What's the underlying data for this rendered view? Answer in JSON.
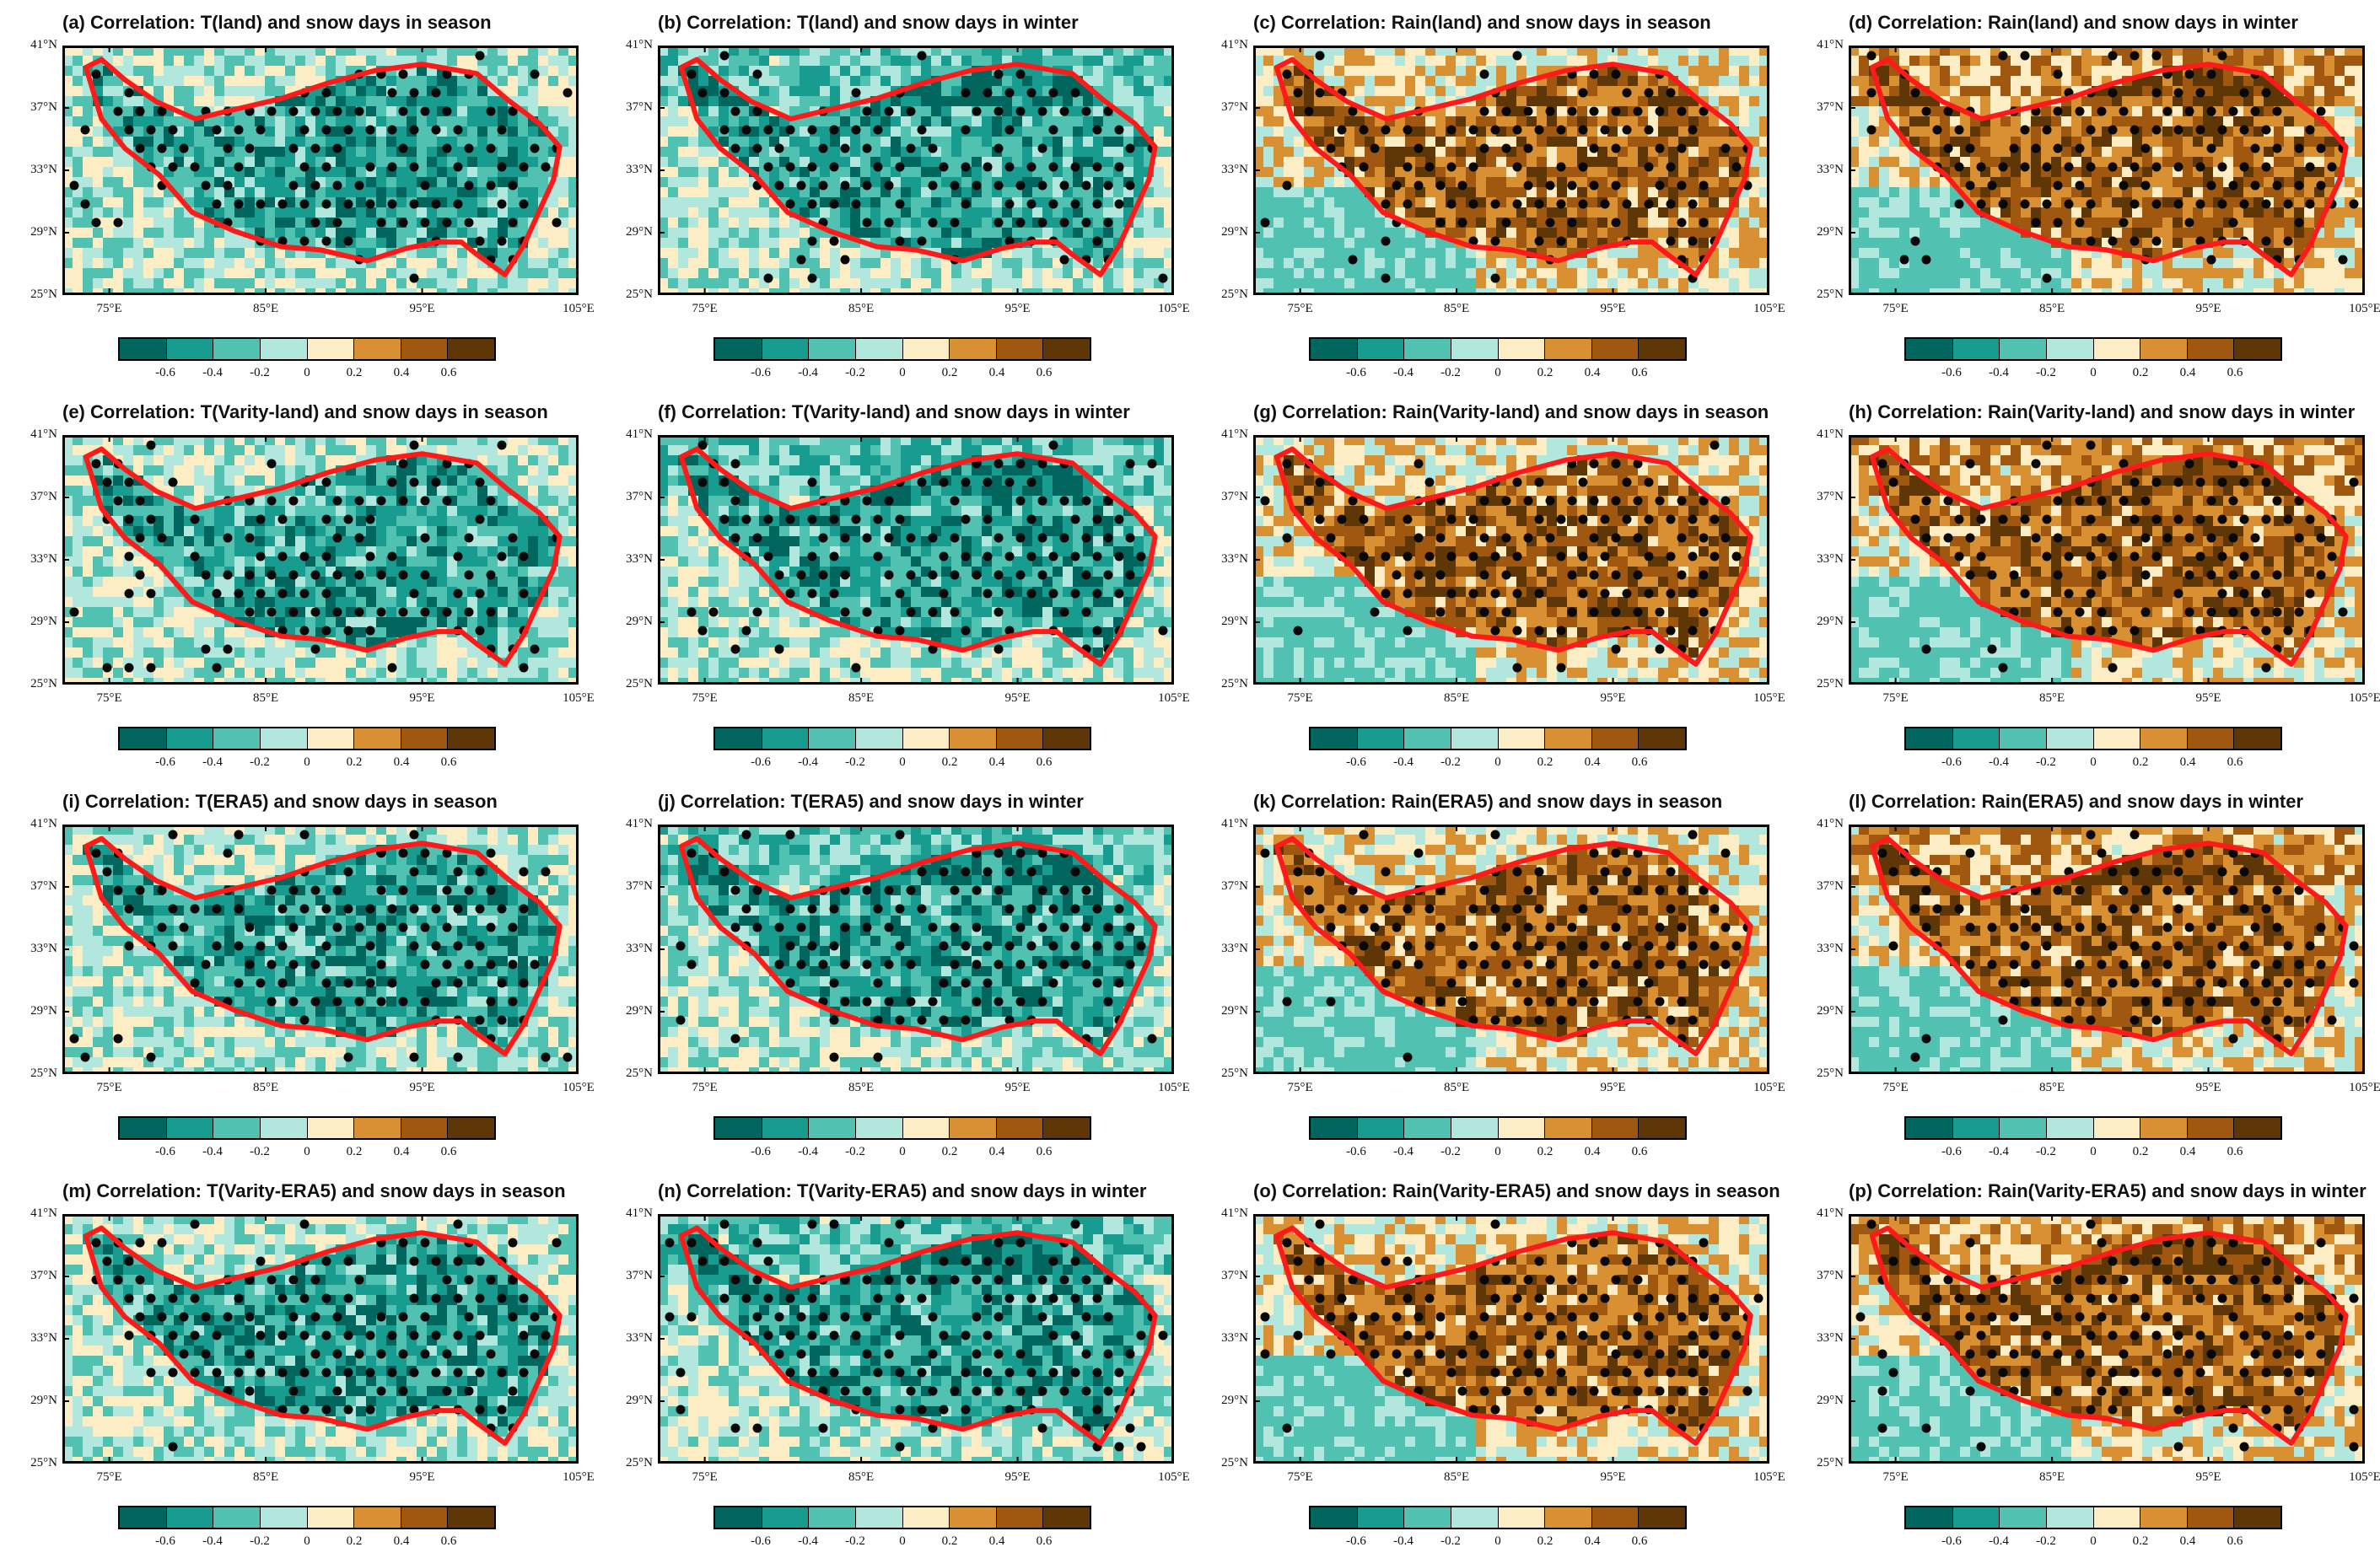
{
  "figure": {
    "panels": [
      {
        "id": "a",
        "title": "(a) Correlation: T(land) and snow days in season",
        "var": "T",
        "season": "season"
      },
      {
        "id": "b",
        "title": "(b) Correlation: T(land) and snow days in winter",
        "var": "T",
        "season": "winter"
      },
      {
        "id": "c",
        "title": "(c) Correlation: Rain(land) and snow days in season",
        "var": "Rain",
        "season": "season"
      },
      {
        "id": "d",
        "title": "(d) Correlation: Rain(land) and snow days in winter",
        "var": "Rain",
        "season": "winter"
      },
      {
        "id": "e",
        "title": "(e) Correlation: T(Varity-land) and snow days in season",
        "var": "T",
        "season": "season"
      },
      {
        "id": "f",
        "title": "(f) Correlation: T(Varity-land) and snow days in winter",
        "var": "T",
        "season": "winter"
      },
      {
        "id": "g",
        "title": "(g) Correlation: Rain(Varity-land) and snow days in season",
        "var": "Rain",
        "season": "season"
      },
      {
        "id": "h",
        "title": "(h) Correlation: Rain(Varity-land) and snow days in winter",
        "var": "Rain",
        "season": "winter"
      },
      {
        "id": "i",
        "title": "(i) Correlation: T(ERA5) and snow days in season",
        "var": "T",
        "season": "season"
      },
      {
        "id": "j",
        "title": "(j) Correlation: T(ERA5) and snow days in winter",
        "var": "T",
        "season": "winter"
      },
      {
        "id": "k",
        "title": "(k) Correlation: Rain(ERA5) and snow days in season",
        "var": "Rain",
        "season": "season"
      },
      {
        "id": "l",
        "title": "(l) Correlation: Rain(ERA5) and snow days in winter",
        "var": "Rain",
        "season": "winter"
      },
      {
        "id": "m",
        "title": "(m) Correlation: T(Varity-ERA5) and snow days in season",
        "var": "T",
        "season": "season"
      },
      {
        "id": "n",
        "title": "(n) Correlation: T(Varity-ERA5) and snow days in winter",
        "var": "T",
        "season": "winter"
      },
      {
        "id": "o",
        "title": "(o) Correlation: Rain(Varity-ERA5) and snow days in season",
        "var": "Rain",
        "season": "season"
      },
      {
        "id": "p",
        "title": "(p) Correlation: Rain(Varity-ERA5) and snow days in winter",
        "var": "Rain",
        "season": "winter"
      }
    ],
    "lat_labels": [
      "41°N",
      "37°N",
      "33°N",
      "29°N",
      "25°N"
    ],
    "lat_values": [
      41,
      37,
      33,
      29,
      25
    ],
    "lon_labels": [
      "75°E",
      "85°E",
      "95°E",
      "105°E"
    ],
    "lon_values": [
      75,
      85,
      95,
      105
    ],
    "extent": {
      "lon_min": 72,
      "lon_max": 105,
      "lat_min": 25,
      "lat_max": 41
    },
    "colorbar": {
      "labels": [
        "-0.6",
        "-0.4",
        "-0.2",
        "0",
        "0.2",
        "0.4",
        "0.6"
      ],
      "levels": [
        -0.6,
        -0.4,
        -0.2,
        0,
        0.2,
        0.4,
        0.6
      ],
      "colors": [
        "#01665e",
        "#179c8f",
        "#51c1b2",
        "#b2e7de",
        "#fdedc4",
        "#d99033",
        "#a0570f",
        "#5f3606"
      ]
    },
    "boundary_color": "#ff1a1a",
    "plateau_boundary": [
      [
        73.5,
        39.6
      ],
      [
        74.5,
        40.1
      ],
      [
        76,
        38.8
      ],
      [
        78,
        37.4
      ],
      [
        80.5,
        36.3
      ],
      [
        83,
        36.9
      ],
      [
        86,
        37.6
      ],
      [
        89,
        38.6
      ],
      [
        92,
        39.4
      ],
      [
        95,
        39.8
      ],
      [
        98.5,
        39.2
      ],
      [
        100.5,
        37.5
      ],
      [
        102.5,
        36
      ],
      [
        103.8,
        34.5
      ],
      [
        103.4,
        32.4
      ],
      [
        102.4,
        30.2
      ],
      [
        101.5,
        28.2
      ],
      [
        100.3,
        26.3
      ],
      [
        98.5,
        27.6
      ],
      [
        97.5,
        28.4
      ],
      [
        96,
        28.4
      ],
      [
        94,
        28
      ],
      [
        91.5,
        27.2
      ],
      [
        88.5,
        27.9
      ],
      [
        86,
        28.1
      ],
      [
        83,
        29.1
      ],
      [
        80.3,
        30.3
      ],
      [
        78.2,
        32.7
      ],
      [
        76,
        34.4
      ],
      [
        74.5,
        36.3
      ]
    ]
  }
}
